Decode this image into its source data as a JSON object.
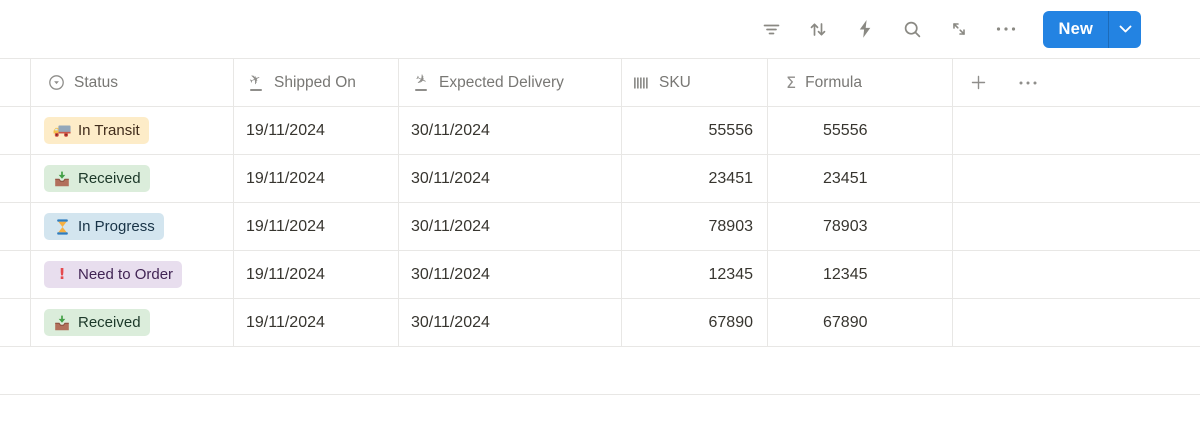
{
  "toolbar": {
    "icon_names": [
      "filter",
      "sort",
      "automations",
      "search",
      "expand",
      "more"
    ],
    "new_button_label": "New"
  },
  "glyphs": {
    "sigma": "Σ",
    "plane": "✈"
  },
  "table": {
    "columns": [
      {
        "label": "Status",
        "icon": "status-property-icon"
      },
      {
        "label": "Shipped On",
        "icon": "plane-takeoff-icon"
      },
      {
        "label": "Expected Delivery",
        "icon": "plane-landing-icon"
      },
      {
        "label": "SKU",
        "icon": "barcode-icon"
      },
      {
        "label": "Formula",
        "icon": "sigma-icon"
      }
    ],
    "rows": [
      {
        "status": {
          "label": "In Transit",
          "emoji": "truck",
          "bg": "#fdecc8",
          "fg": "#402c1b"
        },
        "shipped_on": "19/11/2024",
        "expected_delivery": "30/11/2024",
        "sku": "55556",
        "formula": "55556"
      },
      {
        "status": {
          "label": "Received",
          "emoji": "inbox",
          "bg": "#dbeddb",
          "fg": "#1c3829"
        },
        "shipped_on": "19/11/2024",
        "expected_delivery": "30/11/2024",
        "sku": "23451",
        "formula": "23451"
      },
      {
        "status": {
          "label": "In Progress",
          "emoji": "hourglass",
          "bg": "#d3e5ef",
          "fg": "#183347"
        },
        "shipped_on": "19/11/2024",
        "expected_delivery": "30/11/2024",
        "sku": "78903",
        "formula": "78903"
      },
      {
        "status": {
          "label": "Need to Order",
          "emoji": "exclamation",
          "bg": "#e8deee",
          "fg": "#412454"
        },
        "shipped_on": "19/11/2024",
        "expected_delivery": "30/11/2024",
        "sku": "12345",
        "formula": "12345"
      },
      {
        "status": {
          "label": "Received",
          "emoji": "inbox",
          "bg": "#dbeddb",
          "fg": "#1c3829"
        },
        "shipped_on": "19/11/2024",
        "expected_delivery": "30/11/2024",
        "sku": "67890",
        "formula": "67890"
      }
    ]
  },
  "colors": {
    "accent_blue": "#2383e2",
    "border": "#e8e7e5",
    "header_text": "#787774",
    "cell_text": "#37352f"
  }
}
